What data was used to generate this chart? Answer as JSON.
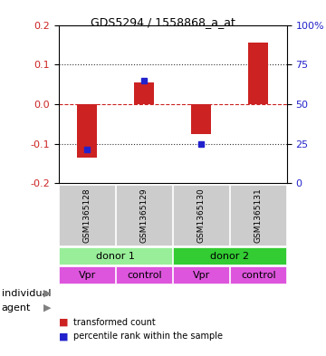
{
  "title": "GDS5294 / 1558868_a_at",
  "samples": [
    "GSM1365128",
    "GSM1365129",
    "GSM1365130",
    "GSM1365131"
  ],
  "bar_values": [
    -0.135,
    0.055,
    -0.075,
    0.155
  ],
  "dot_values": [
    -0.115,
    0.06,
    -0.1,
    null
  ],
  "ylim": [
    -0.2,
    0.2
  ],
  "yticks_left": [
    -0.2,
    -0.1,
    0.0,
    0.1,
    0.2
  ],
  "yticks_right": [
    0,
    25,
    50,
    75,
    100
  ],
  "yticks_right_labels": [
    "0",
    "25",
    "50",
    "75",
    "100%"
  ],
  "bar_color": "#cc2222",
  "dot_color": "#2222cc",
  "hline_color": "#cc2222",
  "dotted_color": "#333333",
  "individual_colors": [
    "#99ee99",
    "#33cc33"
  ],
  "individual_labels": [
    "donor 1",
    "donor 2"
  ],
  "agent_labels": [
    "Vpr",
    "control",
    "Vpr",
    "control"
  ],
  "agent_color": "#dd55dd",
  "row_label_individual": "individual",
  "row_label_agent": "agent",
  "legend_bar_label": "transformed count",
  "legend_dot_label": "percentile rank within the sample",
  "bg_color": "#cccccc",
  "plot_bg": "#ffffff"
}
